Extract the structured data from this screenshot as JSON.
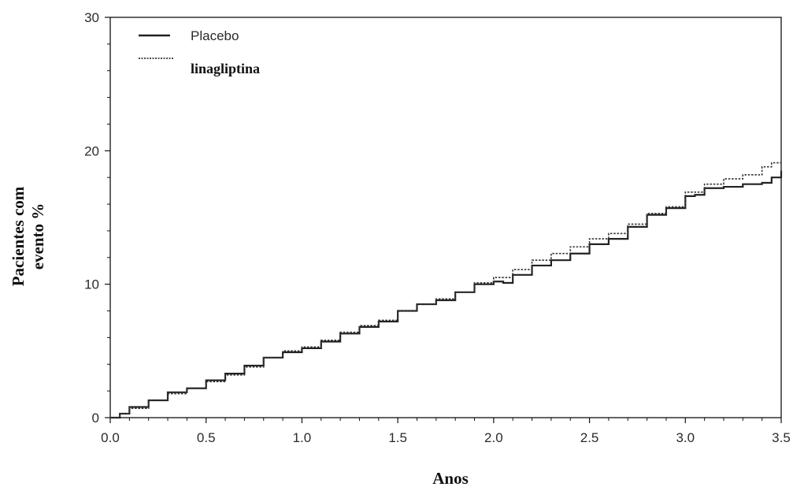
{
  "chart_data": {
    "type": "line",
    "title": "",
    "xlabel": "Anos",
    "ylabel_lines": [
      "Pacientes com",
      "evento %"
    ],
    "xlim": [
      0,
      3.5
    ],
    "ylim": [
      0,
      30
    ],
    "x_ticks": [
      "0.0",
      "0.5",
      "1.0",
      "1.5",
      "2.0",
      "2.5",
      "3.0",
      "3.5"
    ],
    "y_ticks": [
      "0",
      "10",
      "20",
      "30"
    ],
    "grid": false,
    "legend_position": "top-left",
    "series": [
      {
        "name": "Placebo",
        "style": "solid",
        "color": "#222222",
        "points": [
          [
            0.0,
            0.0
          ],
          [
            0.05,
            0.3
          ],
          [
            0.1,
            0.8
          ],
          [
            0.2,
            1.3
          ],
          [
            0.3,
            1.9
          ],
          [
            0.4,
            2.2
          ],
          [
            0.5,
            2.8
          ],
          [
            0.6,
            3.3
          ],
          [
            0.7,
            3.9
          ],
          [
            0.8,
            4.5
          ],
          [
            0.9,
            4.9
          ],
          [
            1.0,
            5.2
          ],
          [
            1.1,
            5.7
          ],
          [
            1.2,
            6.3
          ],
          [
            1.3,
            6.8
          ],
          [
            1.4,
            7.2
          ],
          [
            1.5,
            8.0
          ],
          [
            1.6,
            8.5
          ],
          [
            1.7,
            8.8
          ],
          [
            1.8,
            9.4
          ],
          [
            1.9,
            10.0
          ],
          [
            2.0,
            10.2
          ],
          [
            2.05,
            10.1
          ],
          [
            2.1,
            10.7
          ],
          [
            2.2,
            11.4
          ],
          [
            2.3,
            11.8
          ],
          [
            2.4,
            12.3
          ],
          [
            2.5,
            13.0
          ],
          [
            2.6,
            13.4
          ],
          [
            2.7,
            14.3
          ],
          [
            2.8,
            15.2
          ],
          [
            2.9,
            15.7
          ],
          [
            3.0,
            16.6
          ],
          [
            3.05,
            16.7
          ],
          [
            3.1,
            17.2
          ],
          [
            3.2,
            17.3
          ],
          [
            3.3,
            17.5
          ],
          [
            3.4,
            17.6
          ],
          [
            3.45,
            18.0
          ],
          [
            3.5,
            18.5
          ]
        ]
      },
      {
        "name": "linagliptina",
        "style": "dotted",
        "color": "#333333",
        "points": [
          [
            0.0,
            0.0
          ],
          [
            0.05,
            0.3
          ],
          [
            0.1,
            0.7
          ],
          [
            0.2,
            1.3
          ],
          [
            0.3,
            1.8
          ],
          [
            0.4,
            2.2
          ],
          [
            0.5,
            2.7
          ],
          [
            0.6,
            3.2
          ],
          [
            0.7,
            3.8
          ],
          [
            0.8,
            4.5
          ],
          [
            0.9,
            5.0
          ],
          [
            1.0,
            5.3
          ],
          [
            1.1,
            5.8
          ],
          [
            1.2,
            6.4
          ],
          [
            1.3,
            6.9
          ],
          [
            1.4,
            7.3
          ],
          [
            1.5,
            8.0
          ],
          [
            1.6,
            8.5
          ],
          [
            1.7,
            8.9
          ],
          [
            1.8,
            9.4
          ],
          [
            1.9,
            10.1
          ],
          [
            2.0,
            10.5
          ],
          [
            2.1,
            11.1
          ],
          [
            2.2,
            11.8
          ],
          [
            2.3,
            12.3
          ],
          [
            2.4,
            12.8
          ],
          [
            2.5,
            13.4
          ],
          [
            2.6,
            13.8
          ],
          [
            2.7,
            14.5
          ],
          [
            2.8,
            15.3
          ],
          [
            2.9,
            15.8
          ],
          [
            3.0,
            16.9
          ],
          [
            3.1,
            17.5
          ],
          [
            3.2,
            17.9
          ],
          [
            3.3,
            18.2
          ],
          [
            3.4,
            18.8
          ],
          [
            3.45,
            19.1
          ],
          [
            3.5,
            19.1
          ]
        ]
      }
    ]
  }
}
